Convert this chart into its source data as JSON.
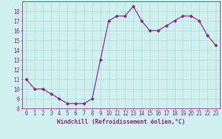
{
  "x": [
    0,
    1,
    2,
    3,
    4,
    5,
    6,
    7,
    8,
    9,
    10,
    11,
    12,
    13,
    14,
    15,
    16,
    17,
    18,
    19,
    20,
    21,
    22,
    23
  ],
  "y": [
    11,
    10,
    10,
    9.5,
    9,
    8.5,
    8.5,
    8.5,
    9,
    13,
    17,
    17.5,
    17.5,
    18.5,
    17,
    16,
    16,
    16.5,
    17,
    17.5,
    17.5,
    17,
    15.5,
    14.5
  ],
  "ylim": [
    8,
    19
  ],
  "xlim": [
    -0.5,
    23.5
  ],
  "yticks": [
    8,
    9,
    10,
    11,
    12,
    13,
    14,
    15,
    16,
    17,
    18
  ],
  "xticks": [
    0,
    1,
    2,
    3,
    4,
    5,
    6,
    7,
    8,
    9,
    10,
    11,
    12,
    13,
    14,
    15,
    16,
    17,
    18,
    19,
    20,
    21,
    22,
    23
  ],
  "line_color": "#882288",
  "marker": "D",
  "marker_size": 2.2,
  "line_width": 0.9,
  "bg_color": "#cff0ee",
  "grid_color": "#aaddcc",
  "xlabel": "Windchill (Refroidissement éolien,°C)",
  "xlabel_fontsize": 6.0,
  "tick_fontsize": 5.5,
  "tick_color": "#882288",
  "label_color": "#882288",
  "spine_color": "#882288"
}
